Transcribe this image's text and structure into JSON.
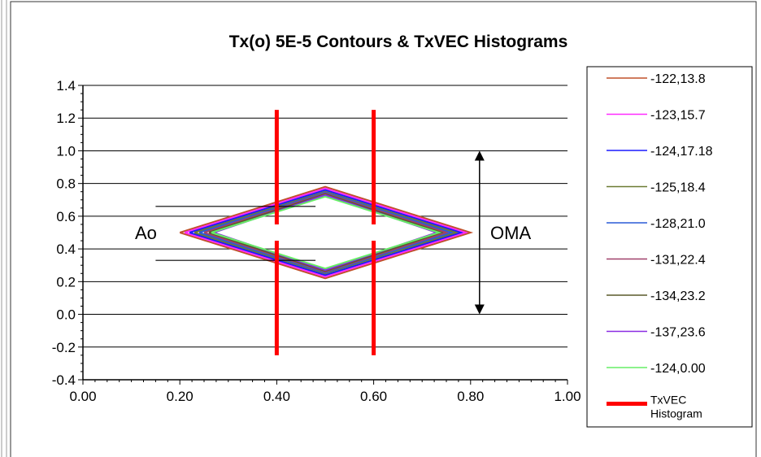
{
  "chart_data": {
    "type": "line",
    "title": "Tx(o) 5E-5  Contours & TxVEC Histograms",
    "xlabel": "",
    "ylabel": "",
    "xlim": [
      0,
      1
    ],
    "ylim": [
      -0.4,
      1.4
    ],
    "grid": true,
    "legend_position": "right",
    "x_tick_labels": [
      "0.00",
      "0.20",
      "0.40",
      "0.60",
      "0.80",
      "1.00"
    ],
    "y_tick_labels": [
      "1.4",
      "1.2",
      "1.0",
      "0.8",
      "0.6",
      "0.4",
      "0.2",
      "0.0",
      "-0.2",
      "-0.4"
    ],
    "x_ticks": [
      0,
      0.2,
      0.4,
      0.6,
      0.8,
      1.0
    ],
    "y_ticks": [
      1.4,
      1.2,
      1.0,
      0.8,
      0.6,
      0.4,
      0.2,
      0.0,
      -0.2,
      -0.4
    ],
    "series": [
      {
        "name": "-122,13.8",
        "color": "#c0502a",
        "x": [
          0.2,
          0.5,
          0.8,
          0.5,
          0.2
        ],
        "y": [
          0.5,
          0.78,
          0.5,
          0.22,
          0.5
        ]
      },
      {
        "name": "-123,15.7",
        "color": "#ff2bff",
        "x": [
          0.21,
          0.5,
          0.79,
          0.5,
          0.21
        ],
        "y": [
          0.5,
          0.77,
          0.5,
          0.23,
          0.5
        ]
      },
      {
        "name": "-124,17.18",
        "color": "#1a1aff",
        "x": [
          0.22,
          0.5,
          0.78,
          0.5,
          0.22
        ],
        "y": [
          0.5,
          0.76,
          0.5,
          0.24,
          0.5
        ]
      },
      {
        "name": "-125,18.4",
        "color": "#6b7a33",
        "x": [
          0.23,
          0.5,
          0.77,
          0.5,
          0.23
        ],
        "y": [
          0.5,
          0.75,
          0.5,
          0.25,
          0.5
        ]
      },
      {
        "name": "-128,21.0",
        "color": "#2a5bd7",
        "x": [
          0.24,
          0.5,
          0.76,
          0.5,
          0.24
        ],
        "y": [
          0.5,
          0.745,
          0.5,
          0.255,
          0.5
        ]
      },
      {
        "name": "-131,22.4",
        "color": "#a0406a",
        "x": [
          0.25,
          0.5,
          0.75,
          0.5,
          0.25
        ],
        "y": [
          0.5,
          0.74,
          0.5,
          0.26,
          0.5
        ]
      },
      {
        "name": "-134,23.2",
        "color": "#5a5a2a",
        "x": [
          0.26,
          0.5,
          0.74,
          0.5,
          0.26
        ],
        "y": [
          0.5,
          0.735,
          0.5,
          0.265,
          0.5
        ]
      },
      {
        "name": "-137,23.6",
        "color": "#8a2be2",
        "x": [
          0.27,
          0.5,
          0.73,
          0.5,
          0.27
        ],
        "y": [
          0.5,
          0.73,
          0.5,
          0.27,
          0.5
        ]
      },
      {
        "name": "-124,0.00",
        "color": "#66ee66",
        "x": [
          0.265,
          0.5,
          0.735,
          0.5,
          0.265
        ],
        "y": [
          0.5,
          0.72,
          0.5,
          0.28,
          0.5
        ]
      }
    ],
    "histograms": {
      "name": "TxVEC Histogram",
      "color": "#ff0000",
      "segments": [
        {
          "x": 0.4,
          "y_from": 0.55,
          "y_to": 1.25
        },
        {
          "x": 0.4,
          "y_from": -0.25,
          "y_to": 0.45
        },
        {
          "x": 0.6,
          "y_from": 0.55,
          "y_to": 1.25
        },
        {
          "x": 0.6,
          "y_from": -0.25,
          "y_to": 0.45
        }
      ]
    },
    "annotations": {
      "ao_label": "Ao",
      "oma_label": "OMA",
      "ao_lines": [
        {
          "x_from": 0.15,
          "x_to": 0.48,
          "y": 0.66
        },
        {
          "x_from": 0.15,
          "x_to": 0.48,
          "y": 0.33
        }
      ],
      "oma_arrow": {
        "x": 0.8,
        "y_from": 1.0,
        "y_to": 0.0
      }
    },
    "legend_entries": [
      {
        "label": "-122,13.8",
        "color": "#c0502a"
      },
      {
        "label": "-123,15.7",
        "color": "#ff2bff"
      },
      {
        "label": "-124,17.18",
        "color": "#1a1aff"
      },
      {
        "label": "-125,18.4",
        "color": "#6b7a33"
      },
      {
        "label": "-128,21.0",
        "color": "#2a5bd7"
      },
      {
        "label": "-131,22.4",
        "color": "#a0406a"
      },
      {
        "label": "-134,23.2",
        "color": "#5a5a2a"
      },
      {
        "label": "-137,23.6",
        "color": "#8a2be2"
      },
      {
        "label": "-124,0.00",
        "color": "#66ee66"
      },
      {
        "label": "TxVEC\nHistogram",
        "color": "#ff0000"
      }
    ]
  }
}
